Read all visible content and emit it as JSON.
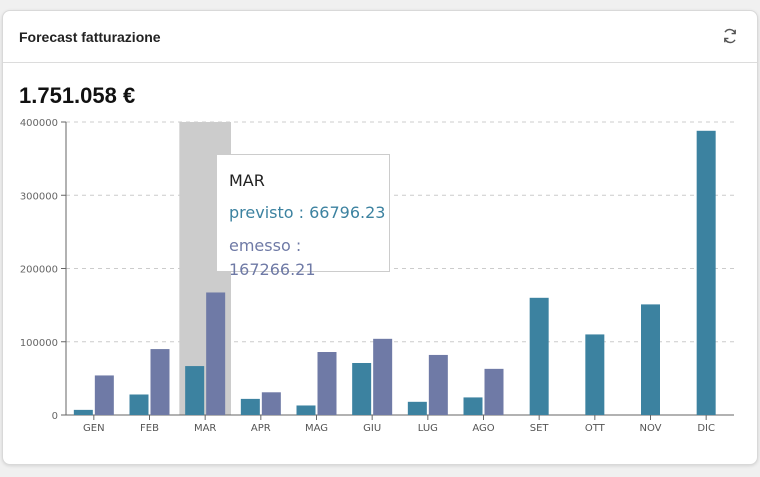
{
  "card": {
    "title": "Forecast fatturazione",
    "total": "1.751.058 €"
  },
  "icons": {
    "refresh": "refresh-icon"
  },
  "tooltip": {
    "month": "MAR",
    "rows": [
      {
        "label": "previsto : 66796.23",
        "color": "#3c82a0"
      },
      {
        "label": "emesso : 167266.21",
        "color": "#6f7aa6"
      }
    ]
  },
  "chart_data": {
    "type": "bar",
    "categories": [
      "GEN",
      "FEB",
      "MAR",
      "APR",
      "MAG",
      "GIU",
      "LUG",
      "AGO",
      "SET",
      "OTT",
      "NOV",
      "DIC"
    ],
    "series": [
      {
        "name": "previsto",
        "color": "#3c82a0",
        "values": [
          7000,
          28000,
          66796.23,
          22000,
          13000,
          71000,
          18000,
          24000,
          160000,
          110000,
          151000,
          388000
        ]
      },
      {
        "name": "emesso",
        "color": "#6f7aa6",
        "values": [
          54000,
          90000,
          167266.21,
          31000,
          86000,
          104000,
          82000,
          63000,
          null,
          null,
          null,
          null
        ]
      }
    ],
    "yticks": [
      0,
      100000,
      200000,
      300000,
      400000
    ],
    "ylim": [
      0,
      400000
    ],
    "grid": true,
    "highlighted_category": "MAR",
    "legend": "none"
  }
}
